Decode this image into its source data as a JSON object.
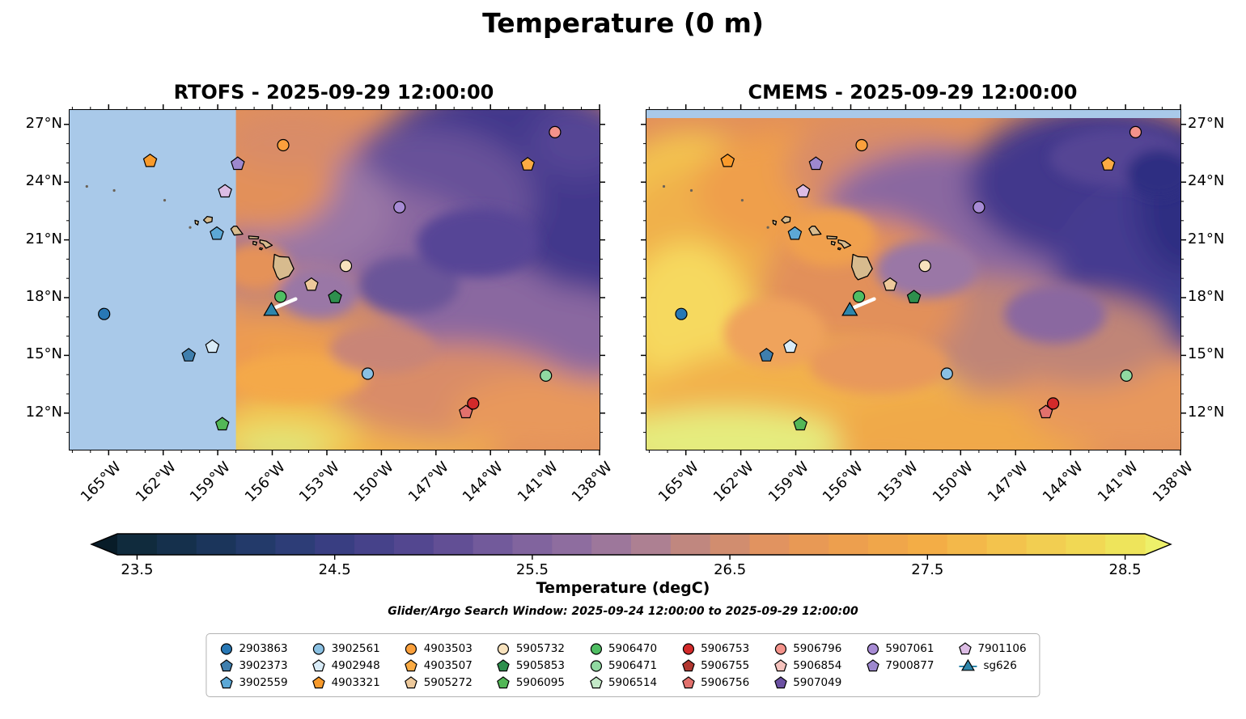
{
  "figure": {
    "title": "Temperature (0 m)",
    "search_window": "Glider/Argo Search Window: 2025-09-24 12:00:00 to 2025-09-29 12:00:00"
  },
  "panels": [
    {
      "id": "rtofs",
      "title": "RTOFS - 2025-09-29 12:00:00"
    },
    {
      "id": "cmems",
      "title": "CMEMS - 2025-09-29 12:00:00"
    }
  ],
  "colorbar": {
    "label": "Temperature (degC)",
    "tick_labels": [
      "23.5",
      "24.5",
      "25.5",
      "26.5",
      "27.5",
      "28.5"
    ],
    "tick_values": [
      23.5,
      24.5,
      25.5,
      26.5,
      27.5,
      28.5
    ],
    "range": [
      23.4,
      28.6
    ],
    "under_color": "#081c28",
    "over_color": "#edf06a",
    "colormap_anchors": [
      [
        23.4,
        "#0e2836"
      ],
      [
        23.8,
        "#173353"
      ],
      [
        24.2,
        "#273c72"
      ],
      [
        24.6,
        "#3f3f87"
      ],
      [
        25.0,
        "#5a4a93"
      ],
      [
        25.4,
        "#7a5f9d"
      ],
      [
        25.8,
        "#95729f"
      ],
      [
        26.1,
        "#ad8092"
      ],
      [
        26.4,
        "#c98a76"
      ],
      [
        26.7,
        "#e19360"
      ],
      [
        27.0,
        "#ec9c50"
      ],
      [
        27.5,
        "#f3ad46"
      ],
      [
        28.0,
        "#f3c94f"
      ],
      [
        28.4,
        "#f0dd55"
      ],
      [
        28.6,
        "#ecea60"
      ]
    ]
  },
  "legend": {
    "entries": [
      {
        "id": "2903863",
        "shape": "circle",
        "color": "#2878b5"
      },
      {
        "id": "3902561",
        "shape": "circle",
        "color": "#8ac0e2"
      },
      {
        "id": "4903503",
        "shape": "circle",
        "color": "#fba03c"
      },
      {
        "id": "5905732",
        "shape": "circle",
        "color": "#f8e2bd"
      },
      {
        "id": "5906470",
        "shape": "circle",
        "color": "#4fbe63"
      },
      {
        "id": "5906753",
        "shape": "circle",
        "color": "#d32a2a"
      },
      {
        "id": "5906796",
        "shape": "circle",
        "color": "#f4938b"
      },
      {
        "id": "5907061",
        "shape": "circle",
        "color": "#a78bd4"
      },
      {
        "id": "7901106",
        "shape": "pentagon",
        "color": "#dcbce4"
      },
      {
        "id": "3902373",
        "shape": "pentagon",
        "color": "#3f7fae"
      },
      {
        "id": "4902948",
        "shape": "pentagon",
        "color": "#d9ecf8"
      },
      {
        "id": "4903507",
        "shape": "pentagon",
        "color": "#fbab43"
      },
      {
        "id": "5905853",
        "shape": "pentagon",
        "color": "#2e8f4d"
      },
      {
        "id": "5906471",
        "shape": "circle",
        "color": "#90d9a1"
      },
      {
        "id": "5906755",
        "shape": "pentagon",
        "color": "#b23831"
      },
      {
        "id": "5906854",
        "shape": "pentagon",
        "color": "#f6c3bd"
      },
      {
        "id": "7900877",
        "shape": "pentagon",
        "color": "#9d88ce"
      },
      {
        "id": "sg626",
        "shape": "triangle",
        "color": "#2e86ab"
      },
      {
        "id": "3902559",
        "shape": "pentagon",
        "color": "#5ca8d6"
      },
      {
        "id": "4903321",
        "shape": "pentagon",
        "color": "#f89a2b"
      },
      {
        "id": "5905272",
        "shape": "pentagon",
        "color": "#edc99b"
      },
      {
        "id": "5906095",
        "shape": "pentagon",
        "color": "#53b757"
      },
      {
        "id": "5906514",
        "shape": "pentagon",
        "color": "#c4e9c8"
      },
      {
        "id": "5906756",
        "shape": "pentagon",
        "color": "#e2716d"
      },
      {
        "id": "5907049",
        "shape": "pentagon",
        "color": "#6b50a2"
      }
    ]
  },
  "chart_data": {
    "type": "heatmap",
    "title": "Temperature (0 m)",
    "variable": "Temperature (degC)",
    "panel_titles": [
      "RTOFS - 2025-09-29 12:00:00",
      "CMEMS - 2025-09-29 12:00:00"
    ],
    "lon_range": [
      -167.15,
      -138.0
    ],
    "lat_range": [
      10.1,
      27.75
    ],
    "lon_tick_values": [
      -165,
      -162,
      -159,
      -156,
      -153,
      -150,
      -147,
      -144,
      -141,
      -138
    ],
    "lon_tick_labels": [
      "165°W",
      "162°W",
      "159°W",
      "156°W",
      "153°W",
      "150°W",
      "147°W",
      "144°W",
      "141°W",
      "138°W"
    ],
    "lat_tick_values": [
      27,
      24,
      21,
      18,
      15,
      12
    ],
    "lat_tick_labels": [
      "27°N",
      "24°N",
      "21°N",
      "18°N",
      "15°N",
      "12°N"
    ],
    "colorbar_range": [
      23.4,
      28.6
    ],
    "rtofs_mask_lon_west_of": -158.0,
    "markers": [
      {
        "id": "2903863",
        "lon": -165.25,
        "lat": 17.15
      },
      {
        "id": "3902373",
        "lon": -160.6,
        "lat": 15.0
      },
      {
        "id": "3902559",
        "lon": -159.05,
        "lat": 21.32
      },
      {
        "id": "3902561",
        "lon": -150.75,
        "lat": 14.05
      },
      {
        "id": "4902948",
        "lon": -159.3,
        "lat": 15.45
      },
      {
        "id": "4903321",
        "lon": -162.72,
        "lat": 25.1
      },
      {
        "id": "4903503",
        "lon": -155.4,
        "lat": 25.92
      },
      {
        "id": "4903507",
        "lon": -141.95,
        "lat": 24.92
      },
      {
        "id": "5905272",
        "lon": -153.85,
        "lat": 18.67
      },
      {
        "id": "5905732",
        "lon": -151.95,
        "lat": 19.65
      },
      {
        "id": "5905853",
        "lon": -152.55,
        "lat": 18.02
      },
      {
        "id": "5906095",
        "lon": -158.75,
        "lat": 11.42
      },
      {
        "id": "5906470",
        "lon": -155.55,
        "lat": 18.05
      },
      {
        "id": "5906471",
        "lon": -140.95,
        "lat": 13.95
      },
      {
        "id": "5906753",
        "lon": -144.95,
        "lat": 12.5
      },
      {
        "id": "5906756",
        "lon": -145.35,
        "lat": 12.05
      },
      {
        "id": "5906796",
        "lon": -140.45,
        "lat": 26.6
      },
      {
        "id": "5907061",
        "lon": -149.0,
        "lat": 22.7
      },
      {
        "id": "7900877",
        "lon": -157.9,
        "lat": 24.95
      },
      {
        "id": "7901106",
        "lon": -158.6,
        "lat": 23.52
      }
    ],
    "glider": {
      "id": "sg626",
      "lon": -156.05,
      "lat": 17.3,
      "track": [
        [
          -155.8,
          17.5
        ],
        [
          -154.72,
          17.93
        ]
      ]
    }
  }
}
